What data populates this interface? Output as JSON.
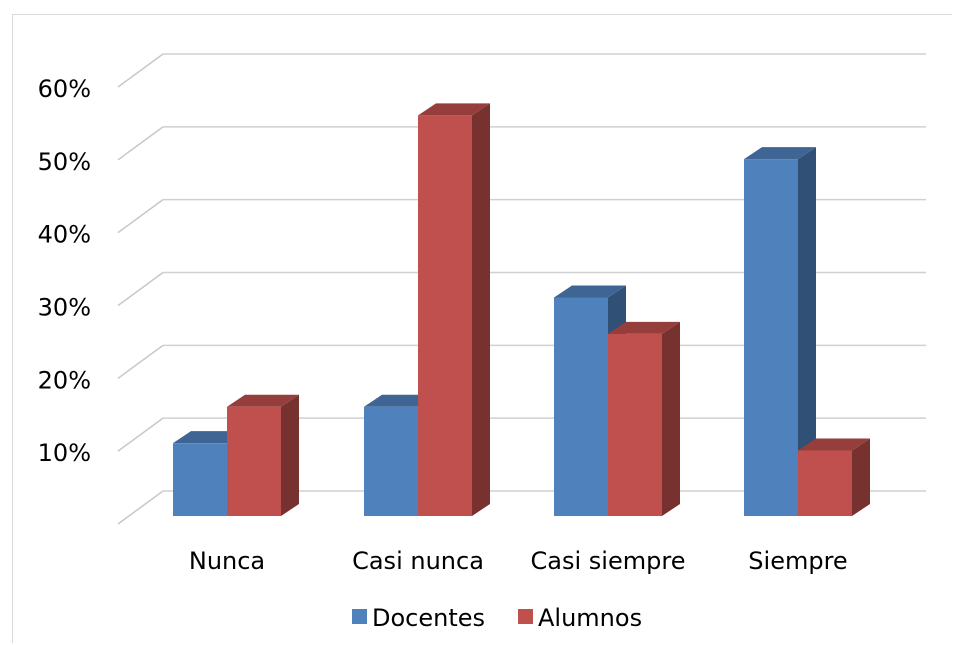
{
  "chart_data": {
    "type": "bar",
    "categories": [
      "Nunca",
      "Casi nunca",
      "Casi siempre",
      "Siempre"
    ],
    "series": [
      {
        "name": "Docentes",
        "values": [
          10,
          15,
          30,
          49
        ],
        "color": "#4f81bd"
      },
      {
        "name": "Alumnos",
        "values": [
          15,
          55,
          25,
          9
        ],
        "color": "#c0504d"
      }
    ],
    "y_ticks": [
      "10%",
      "20%",
      "30%",
      "40%",
      "50%",
      "60%"
    ],
    "ylim": [
      0,
      60
    ],
    "title": "",
    "xlabel": "",
    "ylabel": "",
    "grid": true,
    "legend": "bottom",
    "style": "3d-clustered-column"
  }
}
